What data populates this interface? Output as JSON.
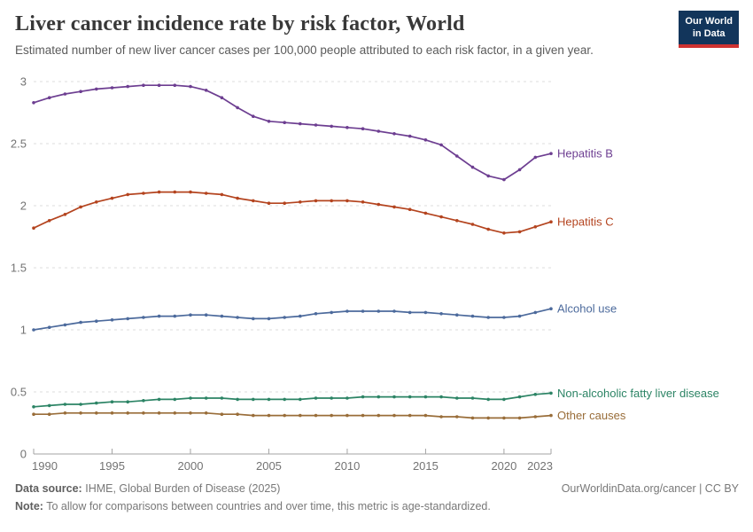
{
  "header": {
    "title": "Liver cancer incidence rate by risk factor, World",
    "subtitle": "Estimated number of new liver cancer cases per 100,000 people attributed to each risk factor, in a given year.",
    "logo": {
      "line1": "Our World",
      "line2": "in Data",
      "bg_color": "#12355B",
      "accent_color": "#CE3231"
    }
  },
  "chart_data": {
    "type": "line",
    "x": [
      1990,
      1991,
      1992,
      1993,
      1994,
      1995,
      1996,
      1997,
      1998,
      1999,
      2000,
      2001,
      2002,
      2003,
      2004,
      2005,
      2006,
      2007,
      2008,
      2009,
      2010,
      2011,
      2012,
      2013,
      2014,
      2015,
      2016,
      2017,
      2018,
      2019,
      2020,
      2021,
      2022,
      2023
    ],
    "series": [
      {
        "name": "Hepatitis B",
        "color": "#6D3E91",
        "values": [
          2.83,
          2.87,
          2.9,
          2.92,
          2.94,
          2.95,
          2.96,
          2.97,
          2.97,
          2.97,
          2.96,
          2.93,
          2.87,
          2.79,
          2.72,
          2.68,
          2.67,
          2.66,
          2.65,
          2.64,
          2.63,
          2.62,
          2.6,
          2.58,
          2.56,
          2.53,
          2.49,
          2.4,
          2.31,
          2.24,
          2.21,
          2.29,
          2.39,
          2.42
        ]
      },
      {
        "name": "Hepatitis C",
        "color": "#B4441F",
        "values": [
          1.82,
          1.88,
          1.93,
          1.99,
          2.03,
          2.06,
          2.09,
          2.1,
          2.11,
          2.11,
          2.11,
          2.1,
          2.09,
          2.06,
          2.04,
          2.02,
          2.02,
          2.03,
          2.04,
          2.04,
          2.04,
          2.03,
          2.01,
          1.99,
          1.97,
          1.94,
          1.91,
          1.88,
          1.85,
          1.81,
          1.78,
          1.79,
          1.83,
          1.87
        ]
      },
      {
        "name": "Alcohol use",
        "color": "#4C6A9C",
        "values": [
          1.0,
          1.02,
          1.04,
          1.06,
          1.07,
          1.08,
          1.09,
          1.1,
          1.11,
          1.11,
          1.12,
          1.12,
          1.11,
          1.1,
          1.09,
          1.09,
          1.1,
          1.11,
          1.13,
          1.14,
          1.15,
          1.15,
          1.15,
          1.15,
          1.14,
          1.14,
          1.13,
          1.12,
          1.11,
          1.1,
          1.1,
          1.11,
          1.14,
          1.17
        ]
      },
      {
        "name": "Non-alcoholic fatty liver disease",
        "color": "#2C8465",
        "values": [
          0.38,
          0.39,
          0.4,
          0.4,
          0.41,
          0.42,
          0.42,
          0.43,
          0.44,
          0.44,
          0.45,
          0.45,
          0.45,
          0.44,
          0.44,
          0.44,
          0.44,
          0.44,
          0.45,
          0.45,
          0.45,
          0.46,
          0.46,
          0.46,
          0.46,
          0.46,
          0.46,
          0.45,
          0.45,
          0.44,
          0.44,
          0.46,
          0.48,
          0.49
        ]
      },
      {
        "name": "Other causes",
        "color": "#996D39",
        "values": [
          0.32,
          0.32,
          0.33,
          0.33,
          0.33,
          0.33,
          0.33,
          0.33,
          0.33,
          0.33,
          0.33,
          0.33,
          0.32,
          0.32,
          0.31,
          0.31,
          0.31,
          0.31,
          0.31,
          0.31,
          0.31,
          0.31,
          0.31,
          0.31,
          0.31,
          0.31,
          0.3,
          0.3,
          0.29,
          0.29,
          0.29,
          0.29,
          0.3,
          0.31
        ]
      }
    ],
    "title": "Liver cancer incidence rate by risk factor, World",
    "xlabel": "",
    "ylabel": "",
    "xlim": [
      1990,
      2023
    ],
    "ylim": [
      0,
      3
    ],
    "yticks": [
      0,
      0.5,
      1,
      1.5,
      2,
      2.5,
      3
    ],
    "ytick_labels": [
      "0",
      "0.5",
      "1",
      "1.5",
      "2",
      "2.5",
      "3"
    ],
    "xticks": [
      1990,
      1995,
      2000,
      2005,
      2010,
      2015,
      2020,
      2023
    ],
    "xtick_labels": [
      "1990",
      "1995",
      "2000",
      "2005",
      "2010",
      "2015",
      "2020",
      "2023"
    ],
    "grid": "horizontal-dashed",
    "legend_position": "right-of-line-end",
    "grid_color": "#dcdcdc",
    "axis_color": "#a3a3a3",
    "tick_text_color": "#737373"
  },
  "footer": {
    "data_source_label": "Data source:",
    "data_source_value": "IHME, Global Burden of Disease (2025)",
    "note_label": "Note:",
    "note_value": "To allow for comparisons between countries and over time, this metric is age-standardized.",
    "link": "OurWorldinData.org/cancer | CC BY"
  }
}
